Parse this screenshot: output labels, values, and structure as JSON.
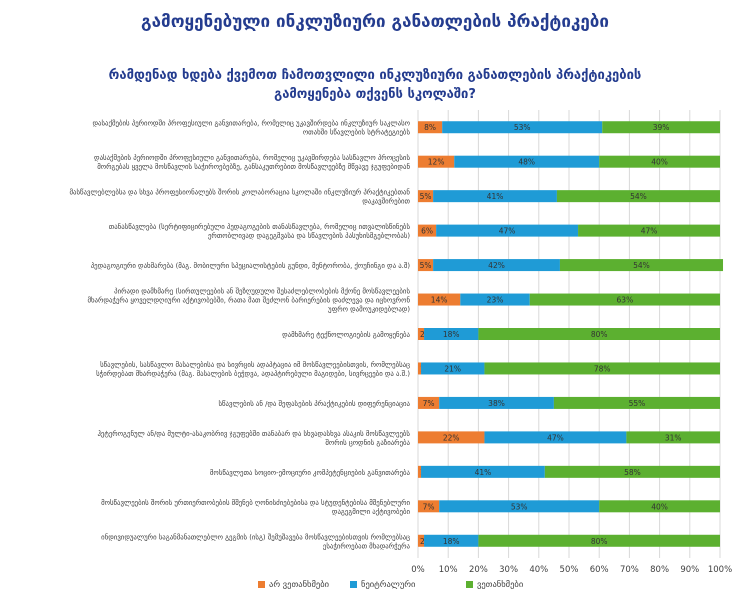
{
  "page_title": "გამოყენებული ინკლუზიური განათლების პრაქტიკები",
  "chart_title": "რამდენად ხდება ქვემოთ ჩამოთვლილი ინკლუზიური განათლების პრაქტიკების გამოყენება თქვენს სკოლაში?",
  "colors": {
    "disagree": "#ed7d31",
    "neutral": "#1f9bd6",
    "agree": "#5cb030",
    "grid": "#d9d9d9",
    "text": "#404040"
  },
  "chart_data": {
    "type": "bar",
    "orientation": "horizontal",
    "stacked": "100%",
    "categories": [
      "დასაქმების პერიოდში პროფესიული განვითარება, რომელიც უკავშირდება ინკლუზიურ საკლასო ოთახში სწავლების სტრატეგიებს",
      "დასაქმების პერიოდში პროფესიული განვითარება, რომელიც უკავშირდება სასწავლო პროცესის მორგებას ყველა მოსწავლის საჭიროებებზე, განსაკუთრებით მოსწავლეებზე მწვავე ჯგუფებიდან",
      "მასწავლებლებსა და სხვა პროფესიონალებს შორის კოლაბორაცია სკოლაში ინკლუზიურ პრაქტიკებთან დაკავშირებით",
      "თანასწავლება (სერტიფიცირებული პედაგოგების თანასწავლება, რომელიც ითვალისწინებს ერთობლივად დაგეგმვასა და სწავლების პასუხისმგებლობას)",
      "პედაგოგიური დახმარება (მაგ. მობილური სპეციალისტების გუნდი, მენტორობა, ქოუჩინგი და ა.შ)",
      "პირადი დამხმარე (სირთულეების ან შეზღუდული შესაძლებლობების მქონე მოსწავლეების მხარდაჭერა ყოველდღიური აქტივობებში, რათა მათ შეძლონ ბარიერების დაძლევა და იცხოვრონ უფრო დამოუკიდებლად)",
      "დამხმარე ტექნოლოგიების გამოყენება",
      "სწავლების, სასწავლო მასალებისა და სივრცის ადაპტაცია იმ მოსწავლეებისთვის, რომლებსაც სჭირდებათ მხარდაჭერა (მაგ. მასალების ბეჭდვა, ადაპტირებული მაგიდები, სივრცეები და ა.შ.)",
      "სწავლების ან /და შეფასების პრაქტიკების დიფერენციაცია",
      "ჰეტეროგენულ ან/და მულტი-ასაკობრივ ჯგუფებში თანაბარ და სხვადასხვა ასაკის მოსწავლეებს შორის ცოდნის გაზიარება",
      "მოსწავლეთა სოციო-ემოციური კომპეტენციების განვითარება",
      "მოსწავლეების შორის ურთიერთობების მშენებ ღონისძიებებისა და სტუდენტებისა მშენებლური დაგეგმილი აქტივობები",
      "ინდივიდუალური საგანმანათლებლო გეგმის (ისგ) შემუშავება მოსწავლეებისთვის რომლებსაც ესაჭიროებათ მხადარჭერა"
    ],
    "series": [
      {
        "name": "არ ვეთანხმები",
        "values": [
          8,
          12,
          5,
          6,
          5,
          14,
          2,
          1,
          7,
          22,
          1,
          7,
          2
        ]
      },
      {
        "name": "ნეიტრალური",
        "values": [
          53,
          48,
          41,
          47,
          42,
          23,
          18,
          21,
          38,
          47,
          41,
          53,
          18
        ]
      },
      {
        "name": "ვეთანხმები",
        "values": [
          39,
          40,
          54,
          47,
          54,
          63,
          80,
          78,
          55,
          31,
          58,
          40,
          80
        ]
      }
    ],
    "value_labels": [
      [
        "8%",
        "53%",
        "39%"
      ],
      [
        "12%",
        "48%",
        "40%"
      ],
      [
        "5%",
        "41%",
        "54%"
      ],
      [
        "6%",
        "47%",
        "47%"
      ],
      [
        "5%",
        "42%",
        "54%"
      ],
      [
        "14%",
        "23%",
        "63%"
      ],
      [
        "2%",
        "18%",
        "80%"
      ],
      [
        "1%",
        "21%",
        "78%"
      ],
      [
        "7%",
        "38%",
        "55%"
      ],
      [
        "22%",
        "47%",
        "31%"
      ],
      [
        "1%",
        "41%",
        "58%"
      ],
      [
        "7%",
        "53%",
        "40%"
      ],
      [
        "2%",
        "18%",
        "80%"
      ]
    ],
    "xlim": [
      0,
      100
    ],
    "x_ticks": [
      "0%",
      "10%",
      "20%",
      "30%",
      "40%",
      "50%",
      "60%",
      "70%",
      "80%",
      "90%",
      "100%"
    ],
    "grid": true,
    "legend_position": "bottom"
  }
}
